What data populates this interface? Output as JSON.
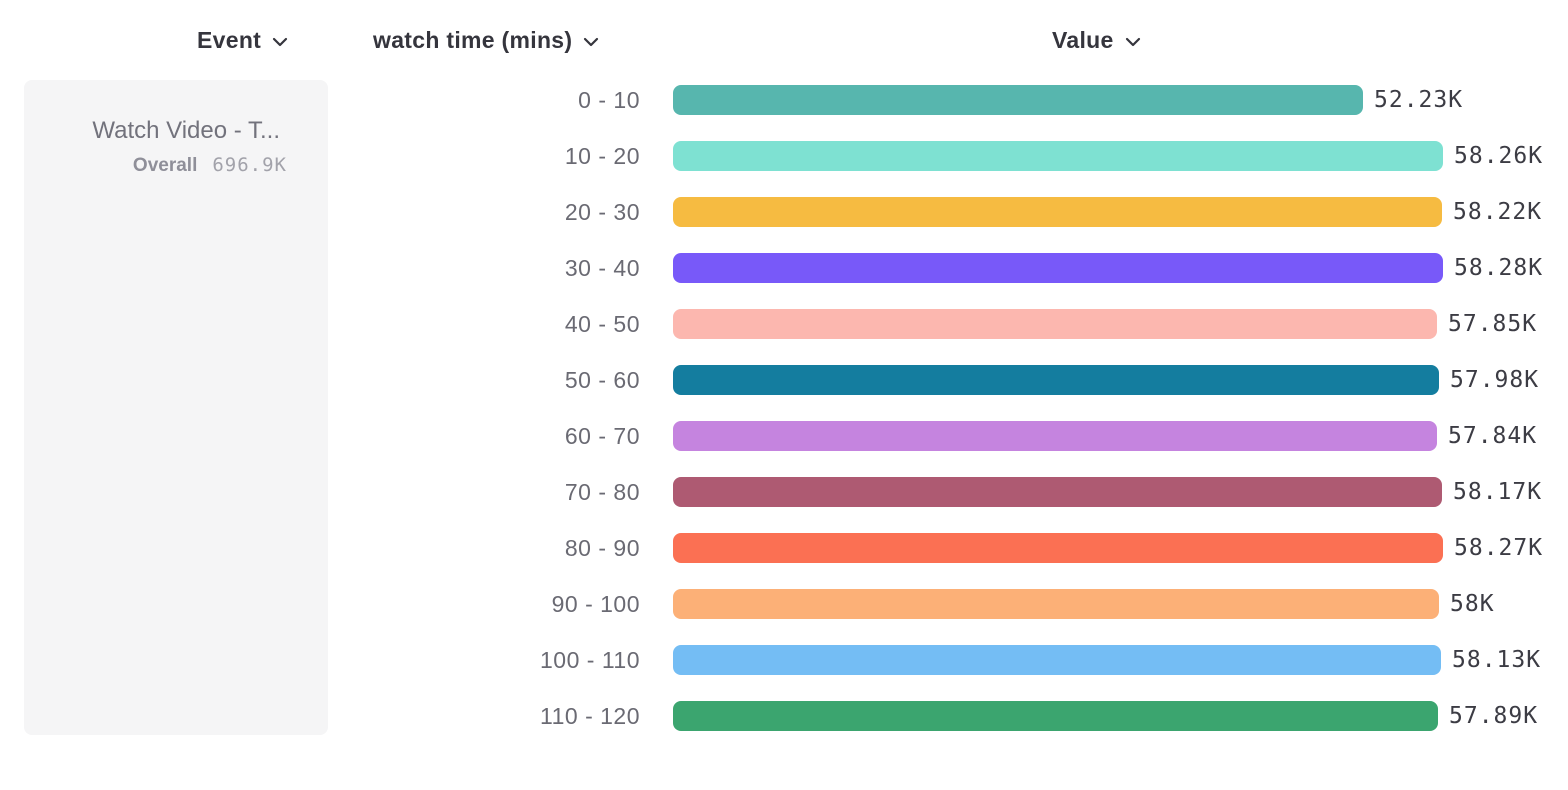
{
  "header": {
    "event_label": "Event",
    "breakdown_label": "watch time (mins)",
    "value_label": "Value"
  },
  "event_card": {
    "title": "Watch Video - T...",
    "overall_label": "Overall",
    "overall_value": "696.9K"
  },
  "chart_data": {
    "type": "bar",
    "orientation": "horizontal",
    "title": "",
    "xlabel": "",
    "ylabel": "watch time (mins)",
    "grid": false,
    "legend": "none",
    "categories": [
      "0 - 10",
      "10 - 20",
      "20 - 30",
      "30 - 40",
      "40 - 50",
      "50 - 60",
      "60 - 70",
      "70 - 80",
      "80 - 90",
      "90 - 100",
      "100 - 110",
      "110 - 120"
    ],
    "values": [
      52230,
      58260,
      58220,
      58280,
      57850,
      57980,
      57840,
      58170,
      58270,
      58000,
      58130,
      57890
    ],
    "value_labels": [
      "52.23K",
      "58.26K",
      "58.22K",
      "58.28K",
      "57.85K",
      "57.98K",
      "57.84K",
      "58.17K",
      "58.27K",
      "58K",
      "58.13K",
      "57.89K"
    ],
    "colors": [
      "#57B6AE",
      "#7EE1D2",
      "#F6BB41",
      "#7859F9",
      "#FCB7AF",
      "#147D9F",
      "#C584DF",
      "#AE5A72",
      "#FB7053",
      "#FCB077",
      "#74BDF4",
      "#3BA56F"
    ],
    "xlim": [
      0,
      58280
    ]
  }
}
